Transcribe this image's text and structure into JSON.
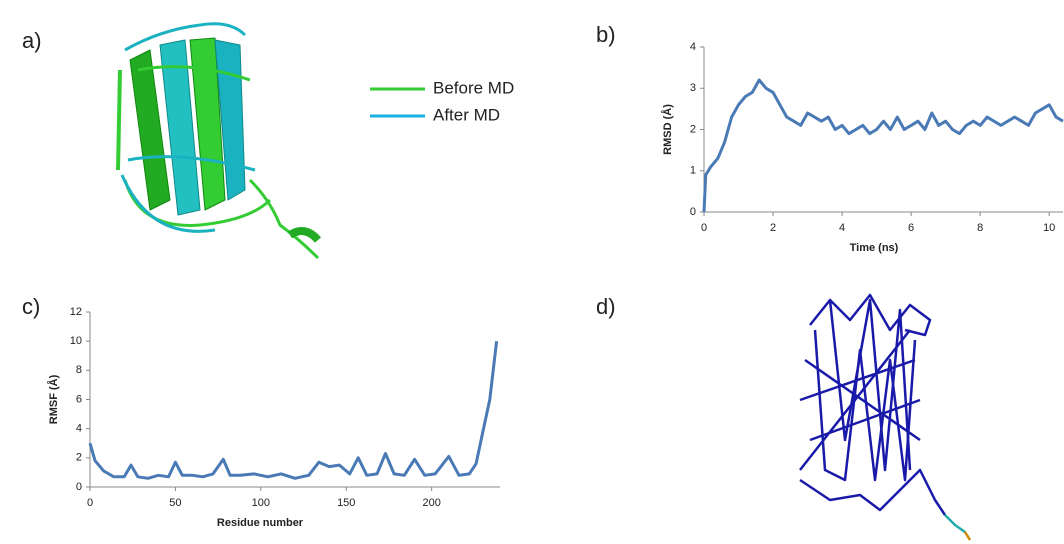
{
  "panel_labels": [
    "a)",
    "b)",
    "c)",
    "d)"
  ],
  "structure_legend": [
    {
      "name": "Before MD",
      "color": "#33cc33"
    },
    {
      "name": "After MD",
      "color": "#1ab2e0"
    }
  ],
  "chart_data": [
    {
      "type": "line",
      "xlabel": "Time (ns)",
      "ylabel": "RMSD (Å)",
      "x": [
        0,
        0.05,
        0.2,
        0.4,
        0.6,
        0.8,
        1.0,
        1.2,
        1.4,
        1.6,
        1.8,
        2.0,
        2.2,
        2.4,
        2.6,
        2.8,
        3.0,
        3.2,
        3.4,
        3.6,
        3.8,
        4.0,
        4.2,
        4.4,
        4.6,
        4.8,
        5.0,
        5.2,
        5.4,
        5.6,
        5.8,
        6.0,
        6.2,
        6.4,
        6.6,
        6.8,
        7.0,
        7.2,
        7.4,
        7.6,
        7.8,
        8.0,
        8.2,
        8.4,
        8.6,
        8.8,
        9.0,
        9.2,
        9.4,
        9.6,
        9.8,
        10.0,
        10.2,
        10.4
      ],
      "values": [
        0,
        0.9,
        1.1,
        1.3,
        1.7,
        2.3,
        2.6,
        2.8,
        2.9,
        3.2,
        3.0,
        2.9,
        2.6,
        2.3,
        2.2,
        2.1,
        2.4,
        2.3,
        2.2,
        2.3,
        2.0,
        2.1,
        1.9,
        2.0,
        2.1,
        1.9,
        2.0,
        2.2,
        2.0,
        2.3,
        2.0,
        2.1,
        2.2,
        2.0,
        2.4,
        2.1,
        2.2,
        2.0,
        1.9,
        2.1,
        2.2,
        2.1,
        2.3,
        2.2,
        2.1,
        2.2,
        2.3,
        2.2,
        2.1,
        2.4,
        2.5,
        2.6,
        2.3,
        2.2
      ],
      "color": "#4a7ab5",
      "xlim": [
        0,
        10.4
      ],
      "xticks": [
        0,
        2,
        4,
        6,
        8,
        10
      ],
      "ylim": [
        0,
        4
      ],
      "yticks": [
        0,
        1,
        2,
        3,
        4
      ]
    },
    {
      "type": "line",
      "xlabel": "Residue number",
      "ylabel": "RMSF (Å)",
      "x": [
        0,
        3,
        8,
        14,
        20,
        24,
        28,
        34,
        40,
        46,
        50,
        54,
        60,
        66,
        72,
        78,
        82,
        88,
        96,
        104,
        112,
        120,
        128,
        134,
        140,
        146,
        152,
        157,
        162,
        168,
        173,
        178,
        184,
        190,
        196,
        202,
        210,
        216,
        222,
        226,
        230,
        234,
        238
      ],
      "values": [
        3.0,
        1.8,
        1.1,
        0.7,
        0.7,
        1.5,
        0.7,
        0.6,
        0.8,
        0.7,
        1.7,
        0.8,
        0.8,
        0.7,
        0.9,
        1.9,
        0.8,
        0.8,
        0.9,
        0.7,
        0.9,
        0.6,
        0.8,
        1.7,
        1.4,
        1.5,
        0.9,
        2.0,
        0.8,
        0.9,
        2.3,
        0.9,
        0.8,
        1.9,
        0.8,
        0.9,
        2.1,
        0.8,
        0.9,
        1.6,
        3.8,
        6.0,
        10.0
      ],
      "color": "#4a7ab5",
      "xlim": [
        0,
        240
      ],
      "xticks": [
        0,
        50,
        100,
        150,
        200
      ],
      "ylim": [
        0,
        12
      ],
      "yticks": [
        0,
        2,
        4,
        6,
        8,
        10,
        12
      ]
    }
  ]
}
